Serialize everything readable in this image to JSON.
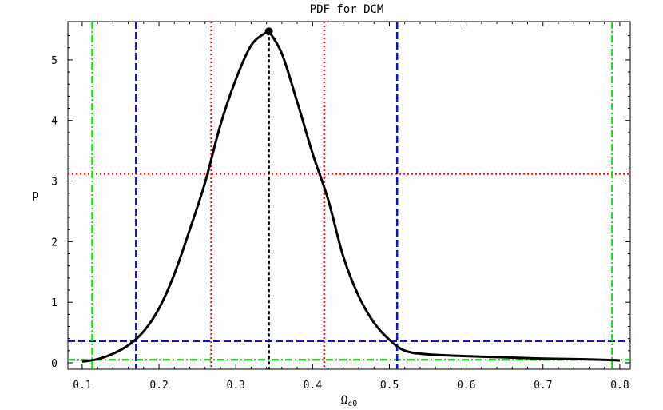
{
  "chart_data": {
    "type": "line",
    "title": "PDF for DCM",
    "xlabel": "Ω",
    "xlabel_sub": "c0",
    "ylabel": "p",
    "xlim": [
      0.1,
      0.8
    ],
    "ylim": [
      0,
      5.5
    ],
    "x_ticks": [
      "0.1",
      "0.2",
      "0.3",
      "0.4",
      "0.5",
      "0.6",
      "0.7",
      "0.8"
    ],
    "y_ticks": [
      "0",
      "1",
      "2",
      "3",
      "4",
      "5"
    ],
    "grid": false,
    "colors": {
      "curve": "#000000",
      "peak": "#000000",
      "one_sigma": "#ee1111",
      "two_sigma": "#1111cc",
      "three_sigma": "#11dd11"
    },
    "series": [
      {
        "x": [
          0.1,
          0.12,
          0.14,
          0.16,
          0.18,
          0.2,
          0.22,
          0.24,
          0.26,
          0.28,
          0.3,
          0.32,
          0.34,
          0.343,
          0.36,
          0.38,
          0.4,
          0.42,
          0.44,
          0.46,
          0.48,
          0.5,
          0.52,
          0.55,
          0.6,
          0.65,
          0.7,
          0.75,
          0.8
        ],
        "y": [
          0.02,
          0.06,
          0.15,
          0.29,
          0.52,
          0.9,
          1.47,
          2.2,
          2.98,
          3.93,
          4.68,
          5.24,
          5.46,
          5.47,
          5.1,
          4.3,
          3.45,
          2.7,
          1.75,
          1.1,
          0.66,
          0.38,
          0.2,
          0.14,
          0.11,
          0.09,
          0.07,
          0.06,
          0.04
        ]
      }
    ],
    "peak": {
      "x": 0.343,
      "y": 5.47
    },
    "vertical_lines": [
      {
        "level": "peak",
        "x": 0.343
      },
      {
        "level": "one_sigma",
        "x": 0.268
      },
      {
        "level": "one_sigma",
        "x": 0.415
      },
      {
        "level": "two_sigma",
        "x": 0.17
      },
      {
        "level": "two_sigma",
        "x": 0.51
      },
      {
        "level": "three_sigma",
        "x": 0.113
      },
      {
        "level": "three_sigma",
        "x": 0.79
      }
    ],
    "horizontal_lines": [
      {
        "level": "one_sigma",
        "y": 3.12
      },
      {
        "level": "two_sigma",
        "y": 0.36
      },
      {
        "level": "three_sigma",
        "y": 0.05
      }
    ]
  }
}
